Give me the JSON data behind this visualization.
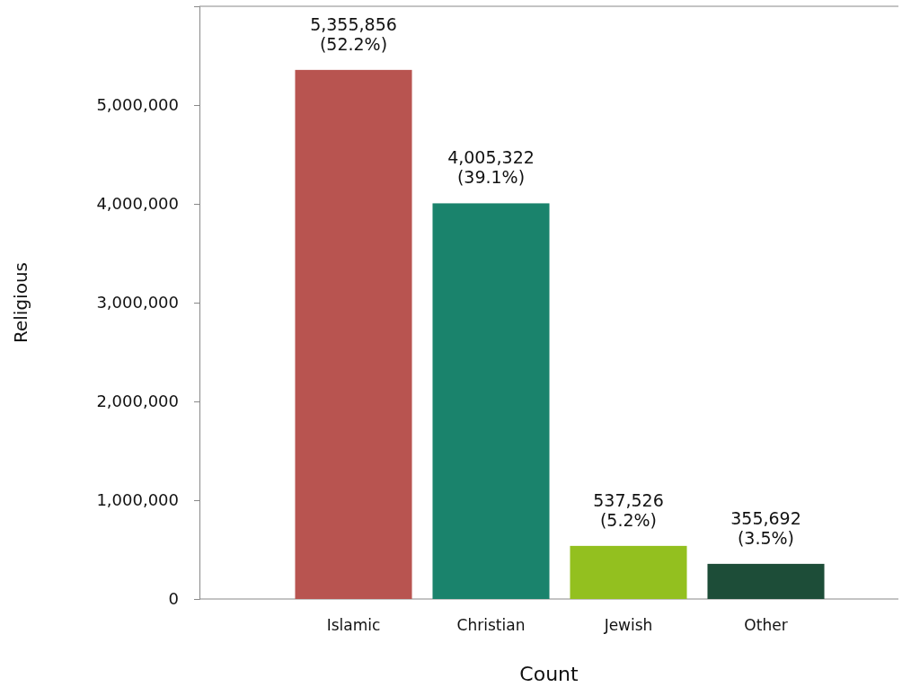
{
  "chart_data": {
    "type": "bar",
    "xlabel": "Count",
    "ylabel": "Religious",
    "categories": [
      "Islamic",
      "Christian",
      "Jewish",
      "Other"
    ],
    "values": [
      5355856,
      4005322,
      537526,
      355692
    ],
    "colors": [
      "#b85450",
      "#1a836c",
      "#93c01f",
      "#1d4d38"
    ],
    "value_labels": [
      "5,355,856\n(52.2%)",
      "4,005,322\n(39.1%)",
      "537,526\n(5.2%)",
      "355,692\n(3.5%)"
    ],
    "ylim": [
      0,
      6000000
    ],
    "yticks": [
      {
        "value": 0,
        "label": "0"
      },
      {
        "value": 1000000,
        "label": "1,000,000"
      },
      {
        "value": 2000000,
        "label": "2,000,000"
      },
      {
        "value": 3000000,
        "label": "3,000,000"
      },
      {
        "value": 4000000,
        "label": "4,000,000"
      },
      {
        "value": 5000000,
        "label": "5,000,000"
      }
    ],
    "grid": false
  }
}
